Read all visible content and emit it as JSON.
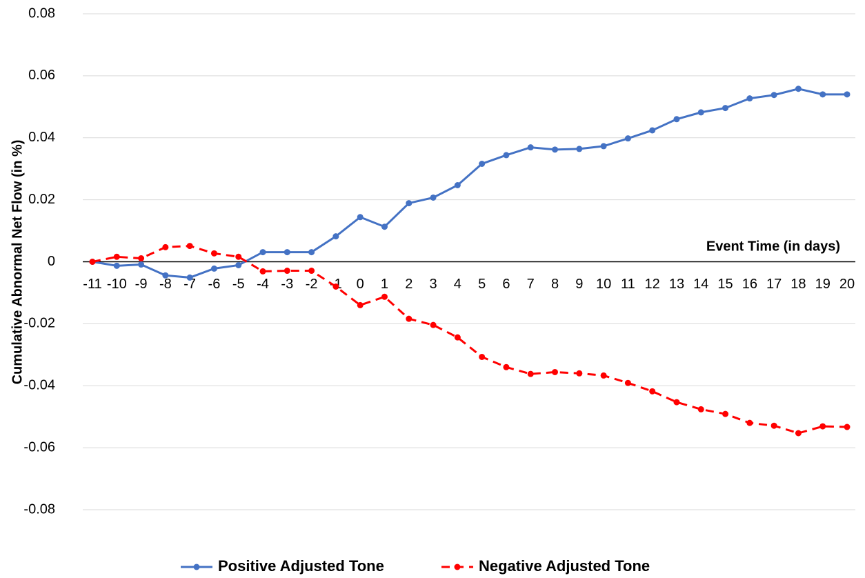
{
  "chart_data": {
    "type": "line",
    "y_label": "Cumulative Abnormal Net Flow (in %)",
    "x_label": "Event Time (in days)",
    "categories": [
      -11,
      -10,
      -9,
      -8,
      -7,
      -6,
      -5,
      -4,
      -3,
      -2,
      -1,
      0,
      1,
      2,
      3,
      4,
      5,
      6,
      7,
      8,
      9,
      10,
      11,
      12,
      13,
      14,
      15,
      16,
      17,
      18,
      19,
      20
    ],
    "series": [
      {
        "name": "Positive Adjusted Tone",
        "color": "#4472c4",
        "dashed": false,
        "values": [
          0,
          -0.0013,
          -0.0009,
          -0.0044,
          -0.0051,
          -0.0022,
          -0.0011,
          0.0031,
          0.0031,
          0.0031,
          0.0082,
          0.0144,
          0.0113,
          0.0189,
          0.0207,
          0.0247,
          0.0316,
          0.0344,
          0.0369,
          0.0362,
          0.0364,
          0.0373,
          0.0398,
          0.0424,
          0.046,
          0.0482,
          0.0496,
          0.0527,
          0.0538,
          0.0558,
          0.054,
          0.054
        ]
      },
      {
        "name": "Negative Adjusted Tone",
        "color": "#ff0000",
        "dashed": true,
        "values": [
          0,
          0.0016,
          0.0011,
          0.0047,
          0.0051,
          0.0027,
          0.0016,
          -0.0031,
          -0.0029,
          -0.0029,
          -0.008,
          -0.014,
          -0.0113,
          -0.0184,
          -0.0204,
          -0.0244,
          -0.0307,
          -0.034,
          -0.0362,
          -0.0356,
          -0.036,
          -0.0367,
          -0.0391,
          -0.0418,
          -0.0453,
          -0.0476,
          -0.0491,
          -0.052,
          -0.0529,
          -0.0553,
          -0.0531,
          -0.0533
        ]
      }
    ],
    "ylim": [
      -0.08,
      0.08
    ],
    "yticks": [
      -0.08,
      -0.06,
      -0.04,
      -0.02,
      0,
      0.02,
      0.04,
      0.06,
      0.08
    ],
    "grid": true,
    "legend": "bottom"
  }
}
